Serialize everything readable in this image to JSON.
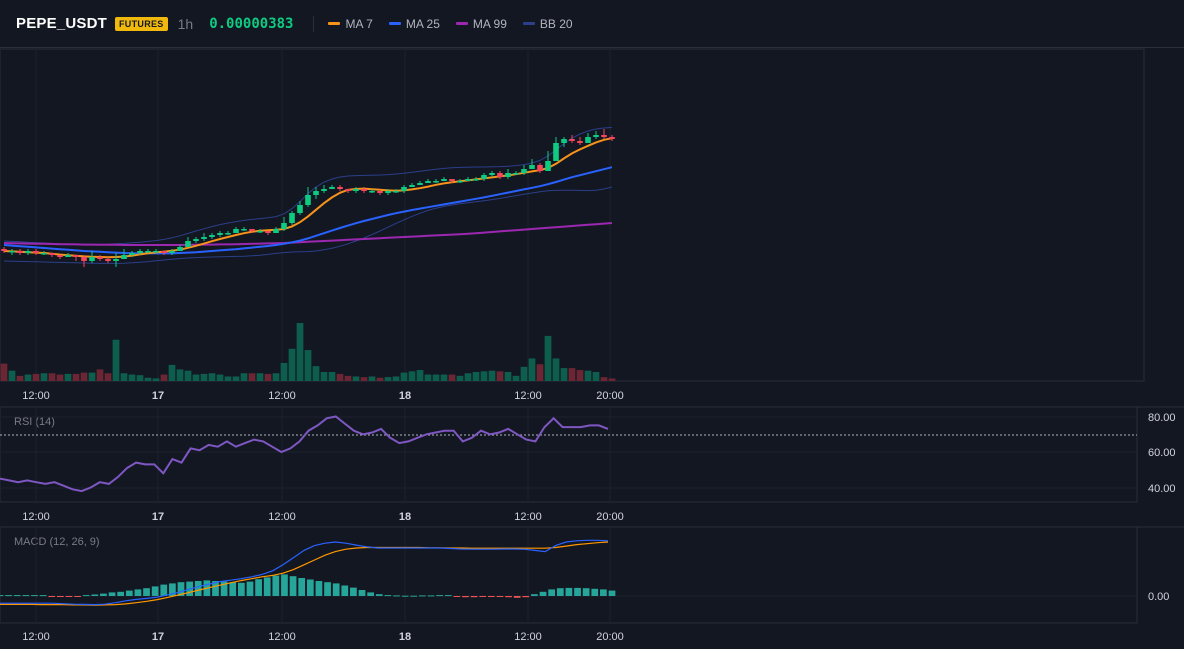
{
  "header": {
    "symbol": "PEPE_USDT",
    "badge": "FUTURES",
    "interval": "1h",
    "price": "0.00000383"
  },
  "legend": [
    {
      "label": "MA 7",
      "color": "#f7931a"
    },
    {
      "label": "MA 25",
      "color": "#2962ff"
    },
    {
      "label": "MA 99",
      "color": "#9c27b0"
    },
    {
      "label": "BB 20",
      "color": "#2b3f8a"
    }
  ],
  "time_axis": [
    "12:00",
    "17",
    "12:00",
    "18",
    "12:00",
    "20:00"
  ],
  "rsi_pane": {
    "label": "RSI (14)",
    "ticks": [
      "80.00",
      "60.00",
      "40.00"
    ],
    "overbought": 70
  },
  "macd_pane": {
    "label": "MACD (12, 26, 9)",
    "ticks": [
      "0.00"
    ]
  },
  "colors": {
    "up": "#0ecb81",
    "down": "#f6465d",
    "vol_up": "#0e5e4e",
    "vol_down": "#6b2533",
    "rsi": "#7e57c2",
    "macd": "#2962ff",
    "signal": "#ff9800",
    "hist_up": "#26a69a",
    "hist_down": "#ef5350",
    "grid": "#1e222d",
    "border": "#2a2e39"
  },
  "chart_data": {
    "type": "candlestick",
    "time_labels": [
      "12:00",
      "17",
      "12:00",
      "18",
      "12:00",
      "20:00"
    ],
    "price_range": [
      26,
      88
    ],
    "candles": [
      [
        72,
        71,
        73,
        70,
        27
      ],
      [
        71,
        71,
        72,
        69,
        16
      ],
      [
        71,
        70,
        72,
        69,
        8
      ],
      [
        70,
        71,
        72,
        69,
        10
      ],
      [
        71,
        70,
        72,
        69,
        11
      ],
      [
        70,
        70,
        71,
        69,
        12
      ],
      [
        70,
        69,
        70,
        68,
        12
      ],
      [
        69,
        68,
        69,
        67,
        10
      ],
      [
        68,
        69,
        70,
        68,
        11
      ],
      [
        69,
        68,
        69,
        66,
        11
      ],
      [
        68,
        66,
        69,
        63,
        13
      ],
      [
        66,
        68,
        71,
        65,
        13
      ],
      [
        68,
        67,
        69,
        66,
        18
      ],
      [
        67,
        66,
        68,
        65,
        12
      ],
      [
        66,
        67,
        70,
        63,
        64
      ],
      [
        67,
        69,
        72,
        67,
        12
      ],
      [
        69,
        70,
        71,
        68,
        10
      ],
      [
        70,
        71,
        72,
        69,
        9
      ],
      [
        71,
        71,
        72,
        70,
        5
      ],
      [
        71,
        71,
        72,
        70,
        4
      ],
      [
        71,
        70,
        71,
        69,
        10
      ],
      [
        70,
        71,
        72,
        69,
        25
      ],
      [
        71,
        73,
        74,
        71,
        18
      ],
      [
        73,
        76,
        78,
        73,
        16
      ],
      [
        76,
        77,
        78,
        75,
        10
      ],
      [
        77,
        78,
        80,
        76,
        11
      ],
      [
        78,
        79,
        80,
        77,
        12
      ],
      [
        79,
        80,
        81,
        78,
        10
      ],
      [
        80,
        80,
        81,
        79,
        7
      ],
      [
        80,
        82,
        83,
        80,
        7
      ],
      [
        82,
        82,
        83,
        81,
        12
      ],
      [
        82,
        81,
        82,
        80,
        12
      ],
      [
        81,
        81,
        82,
        80,
        12
      ],
      [
        81,
        80,
        81,
        79,
        11
      ],
      [
        80,
        82,
        83,
        80,
        12
      ],
      [
        82,
        85,
        88,
        81,
        28
      ],
      [
        85,
        90,
        91,
        84,
        50
      ],
      [
        90,
        94,
        96,
        89,
        90
      ],
      [
        94,
        99,
        103,
        93,
        48
      ],
      [
        99,
        101,
        103,
        97,
        23
      ],
      [
        101,
        102,
        104,
        100,
        14
      ],
      [
        102,
        103,
        104,
        102,
        14
      ],
      [
        103,
        102,
        104,
        101,
        11
      ],
      [
        102,
        101,
        102,
        100,
        8
      ],
      [
        101,
        102,
        103,
        100,
        7
      ],
      [
        102,
        101,
        103,
        100,
        6
      ],
      [
        101,
        101,
        102,
        100,
        7
      ],
      [
        101,
        100,
        101,
        99,
        5
      ],
      [
        100,
        101,
        102,
        99,
        6
      ],
      [
        101,
        101,
        102,
        100,
        7
      ],
      [
        101,
        103,
        104,
        100,
        13
      ],
      [
        103,
        104,
        105,
        103,
        15
      ],
      [
        104,
        105,
        106,
        104,
        17
      ],
      [
        105,
        106,
        107,
        105,
        10
      ],
      [
        106,
        106,
        107,
        105,
        10
      ],
      [
        106,
        107,
        108,
        106,
        10
      ],
      [
        107,
        106,
        107,
        105,
        10
      ],
      [
        106,
        106,
        107,
        105,
        8
      ],
      [
        106,
        107,
        108,
        106,
        12
      ],
      [
        107,
        107,
        108,
        106,
        14
      ],
      [
        107,
        109,
        110,
        106,
        15
      ],
      [
        109,
        110,
        111,
        108,
        16
      ],
      [
        110,
        108,
        111,
        107,
        15
      ],
      [
        108,
        110,
        112,
        107,
        14
      ],
      [
        110,
        110,
        111,
        109,
        8
      ],
      [
        110,
        112,
        114,
        109,
        22
      ],
      [
        112,
        114,
        117,
        112,
        35
      ],
      [
        114,
        111,
        115,
        110,
        26
      ],
      [
        111,
        116,
        121,
        111,
        70
      ],
      [
        116,
        125,
        128,
        116,
        35
      ],
      [
        125,
        127,
        128,
        123,
        20
      ],
      [
        127,
        126,
        129,
        125,
        20
      ],
      [
        126,
        125,
        128,
        124,
        17
      ],
      [
        125,
        128,
        130,
        125,
        16
      ],
      [
        128,
        129,
        131,
        127,
        14
      ],
      [
        129,
        128,
        132,
        127,
        6
      ],
      [
        128,
        127,
        129,
        126,
        4
      ]
    ],
    "ma7": [
      71,
      70.8,
      70.6,
      70.4,
      70.2,
      70,
      69.6,
      69.2,
      68.9,
      68.6,
      68.3,
      68.1,
      68,
      67.9,
      68,
      68.2,
      68.7,
      69.3,
      69.9,
      70.3,
      70.7,
      71.1,
      71.7,
      72.6,
      73.6,
      74.7,
      75.9,
      77,
      78,
      79,
      79.9,
      80.6,
      81.1,
      81.4,
      81.6,
      82,
      83.3,
      85.4,
      88.3,
      91.6,
      94.9,
      97.8,
      100.1,
      101.6,
      102,
      102.2,
      101.9,
      101.6,
      101.3,
      101.1,
      101.3,
      101.8,
      102.4,
      103.2,
      104.1,
      104.8,
      105.4,
      105.9,
      106.3,
      106.8,
      107.3,
      107.8,
      108.3,
      108.8,
      109.4,
      110.1,
      110.8,
      111.4,
      112.5,
      114.6,
      117.3,
      119.8,
      121.8,
      123.6,
      125.3,
      126.6,
      127.4
    ],
    "ma25": [
      74,
      73.7,
      73.4,
      73.1,
      72.8,
      72.5,
      72.2,
      71.9,
      71.6,
      71.3,
      71,
      70.8,
      70.6,
      70.4,
      70.2,
      70,
      69.9,
      69.8,
      69.8,
      69.8,
      69.8,
      69.8,
      70,
      70.2,
      70.4,
      70.7,
      71,
      71.3,
      71.6,
      71.9,
      72.3,
      72.7,
      73.1,
      73.5,
      74,
      74.6,
      75.3,
      76.2,
      77.3,
      78.6,
      79.9,
      81.2,
      82.5,
      83.7,
      84.9,
      86,
      87,
      88,
      89,
      89.9,
      90.7,
      91.5,
      92.2,
      92.9,
      93.6,
      94.3,
      95,
      95.7,
      96.4,
      97.1,
      97.8,
      98.6,
      99.4,
      100.2,
      101,
      101.8,
      102.6,
      103.4,
      104.4,
      105.5,
      106.7,
      107.9,
      108.9,
      109.9,
      110.9,
      111.9,
      112.9
    ],
    "ma99": [
      75,
      74.9,
      74.8,
      74.7,
      74.6,
      74.6,
      74.5,
      74.4,
      74.4,
      74.3,
      74.2,
      74.2,
      74.1,
      74.1,
      74.1,
      74,
      74,
      74,
      74,
      74,
      74,
      74,
      74,
      74.1,
      74.1,
      74.2,
      74.2,
      74.3,
      74.3,
      74.4,
      74.5,
      74.6,
      74.7,
      74.8,
      74.9,
      75,
      75.2,
      75.4,
      75.6,
      75.8,
      76,
      76.2,
      76.4,
      76.6,
      76.8,
      77,
      77.2,
      77.4,
      77.6,
      77.8,
      78,
      78.2,
      78.4,
      78.6,
      78.8,
      79,
      79.2,
      79.4,
      79.6,
      79.9,
      80.2,
      80.5,
      80.8,
      81.1,
      81.4,
      81.7,
      82,
      82.3,
      82.6,
      82.9,
      83.2,
      83.5,
      83.8,
      84.1,
      84.4,
      84.7,
      85
    ],
    "bb_upper": [
      76,
      75.8,
      75.6,
      75.4,
      75.2,
      75,
      74.8,
      74.6,
      74.5,
      74.4,
      74.3,
      74.3,
      74.3,
      74.4,
      74.6,
      74.8,
      75.1,
      75.4,
      75.8,
      76.2,
      76.8,
      77.6,
      78.6,
      79.8,
      81,
      82.1,
      83.2,
      84.2,
      85,
      85.7,
      86.3,
      86.8,
      87.2,
      87.6,
      88.2,
      89.6,
      92.2,
      95.7,
      99.7,
      103,
      105.4,
      107,
      108,
      108.5,
      108.7,
      108.8,
      108.9,
      109,
      109.2,
      109.5,
      109.9,
      110.4,
      110.9,
      111.4,
      111.9,
      112.3,
      112.6,
      112.8,
      112.9,
      113,
      113,
      113.1,
      113.2,
      113.4,
      113.7,
      114.2,
      115,
      116.3,
      118.5,
      121.6,
      124.7,
      127.4,
      129.5,
      131,
      132,
      132.5,
      132.8
    ],
    "bb_lower": [
      66,
      65.9,
      65.8,
      65.7,
      65.6,
      65.5,
      65.4,
      65.3,
      65.2,
      65.1,
      65,
      64.9,
      64.8,
      64.8,
      64.8,
      64.9,
      65.1,
      65.4,
      65.7,
      66.1,
      66.5,
      66.9,
      67.2,
      67.5,
      67.7,
      67.9,
      68,
      68.1,
      68.2,
      68.3,
      68.4,
      68.6,
      68.9,
      69.3,
      69.8,
      70.2,
      70.5,
      70.6,
      70.7,
      71,
      71.6,
      72.4,
      73.4,
      74.6,
      76,
      77.5,
      79.2,
      81,
      82.9,
      84.8,
      86.6,
      88.3,
      89.9,
      91.3,
      92.4,
      93.3,
      94,
      94.6,
      95.1,
      95.6,
      96.1,
      96.7,
      97.3,
      98,
      98.7,
      99.4,
      100,
      100.6,
      101.1,
      101.3,
      101.4,
      101.4,
      101.3,
      101.2,
      101.4,
      102,
      103
    ],
    "rsi": [
      45,
      44,
      43,
      44,
      43,
      42,
      43,
      41,
      39,
      38,
      40,
      43,
      42,
      46,
      51,
      54,
      53,
      53,
      48,
      56,
      54,
      62,
      61,
      64,
      63,
      66,
      63,
      65,
      67,
      66,
      63,
      60,
      62,
      66,
      72,
      75,
      79,
      80,
      76,
      72,
      70,
      71,
      73,
      68,
      65,
      66,
      68,
      70,
      71,
      72,
      72,
      66,
      68,
      72,
      70,
      71,
      73,
      70,
      67,
      66,
      74,
      79,
      74,
      74,
      74,
      75,
      75,
      73
    ],
    "rsi_x_index": true,
    "macd": [
      -0.3,
      -0.3,
      -0.3,
      -0.3,
      -0.3,
      -0.3,
      -0.32,
      -0.34,
      -0.35,
      -0.36,
      -0.34,
      -0.28,
      -0.2,
      -0.14,
      -0.1,
      -0.05,
      0.05,
      0.15,
      0.28,
      0.4,
      0.5,
      0.6,
      0.66,
      0.72,
      0.8,
      0.9,
      1.05,
      1.3,
      1.6,
      1.9,
      2.1,
      2.2,
      2.25,
      2.2,
      2.12,
      2.05,
      2,
      2,
      2,
      2,
      2,
      2,
      2,
      1.98,
      1.96,
      1.95,
      1.95,
      1.95,
      1.96,
      1.96,
      1.95,
      1.9,
      1.85,
      2.1,
      2.25,
      2.3,
      2.32,
      2.32,
      2.3
    ],
    "signal": [
      -0.35,
      -0.35,
      -0.35,
      -0.35,
      -0.36,
      -0.36,
      -0.36,
      -0.37,
      -0.37,
      -0.38,
      -0.37,
      -0.36,
      -0.33,
      -0.28,
      -0.22,
      -0.15,
      -0.06,
      0.04,
      0.14,
      0.25,
      0.35,
      0.45,
      0.55,
      0.64,
      0.72,
      0.8,
      0.86,
      0.95,
      1.1,
      1.3,
      1.5,
      1.7,
      1.85,
      1.95,
      2,
      2.02,
      2.02,
      2.02,
      2.02,
      2.02,
      2.02,
      2.01,
      2.01,
      2,
      2,
      1.99,
      1.99,
      1.99,
      1.99,
      1.99,
      1.99,
      1.99,
      1.99,
      2.02,
      2.08,
      2.14,
      2.18,
      2.22,
      2.25
    ],
    "histogram": [
      0.03,
      0.03,
      0.03,
      0.03,
      0.03,
      0.03,
      -0.03,
      -0.03,
      -0.03,
      -0.03,
      0.03,
      0.05,
      0.08,
      0.12,
      0.14,
      0.18,
      0.22,
      0.26,
      0.32,
      0.38,
      0.42,
      0.46,
      0.48,
      0.5,
      0.52,
      0.5,
      0.48,
      0.46,
      0.44,
      0.48,
      0.56,
      0.62,
      0.68,
      0.72,
      0.66,
      0.6,
      0.55,
      0.5,
      0.46,
      0.42,
      0.35,
      0.28,
      0.2,
      0.12,
      0.06,
      0.03,
      0.02,
      0.01,
      0.01,
      0.02,
      0.02,
      0.03,
      0.03,
      -0.03,
      -0.04,
      -0.04,
      -0.03,
      -0.02,
      -0.03,
      -0.04,
      -0.06,
      -0.04,
      0.06,
      0.14,
      0.22,
      0.26,
      0.27,
      0.27,
      0.26,
      0.24,
      0.22,
      0.18
    ]
  }
}
